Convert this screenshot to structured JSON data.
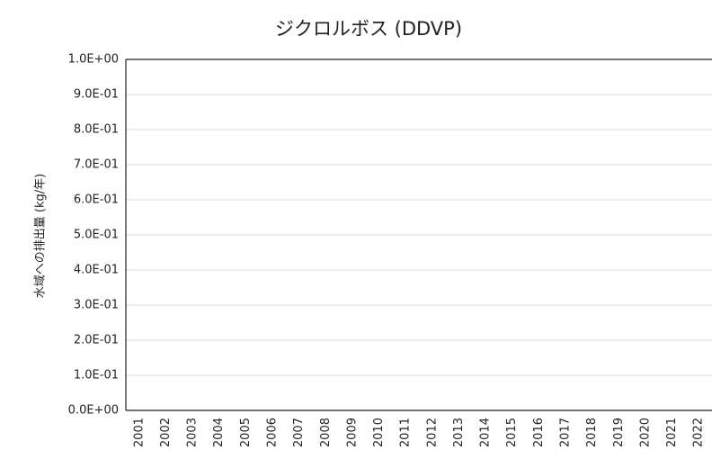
{
  "chart_data": {
    "type": "bar",
    "title": "ジクロルボス (DDVP)",
    "y_label": "水域への排出量 (kg/年)",
    "categories": [
      "2001",
      "2002",
      "2003",
      "2004",
      "2005",
      "2006",
      "2007",
      "2008",
      "2009",
      "2010",
      "2011",
      "2012",
      "2013",
      "2014",
      "2015",
      "2016",
      "2017",
      "2018",
      "2019",
      "2020",
      "2021",
      "2022"
    ],
    "values": [
      0,
      0,
      0,
      0,
      0,
      0,
      0,
      0,
      0,
      0,
      0,
      0,
      0,
      0,
      0,
      0,
      0,
      0,
      0,
      0,
      0,
      0
    ],
    "color": "#4472c4",
    "ylim": [
      0,
      1
    ],
    "yticks": [
      {
        "value": 0,
        "label": "0.0E+00"
      },
      {
        "value": 0.1,
        "label": "1.0E-01"
      },
      {
        "value": 0.2,
        "label": "2.0E-01"
      },
      {
        "value": 0.3,
        "label": "3.0E-01"
      },
      {
        "value": 0.4,
        "label": "4.0E-01"
      },
      {
        "value": 0.5,
        "label": "5.0E-01"
      },
      {
        "value": 0.6,
        "label": "6.0E-01"
      },
      {
        "value": 0.7,
        "label": "7.0E-01"
      },
      {
        "value": 0.8,
        "label": "8.0E-01"
      },
      {
        "value": 0.9,
        "label": "9.0E-01"
      },
      {
        "value": 1,
        "label": "1.0E+00"
      }
    ],
    "grid": true
  }
}
